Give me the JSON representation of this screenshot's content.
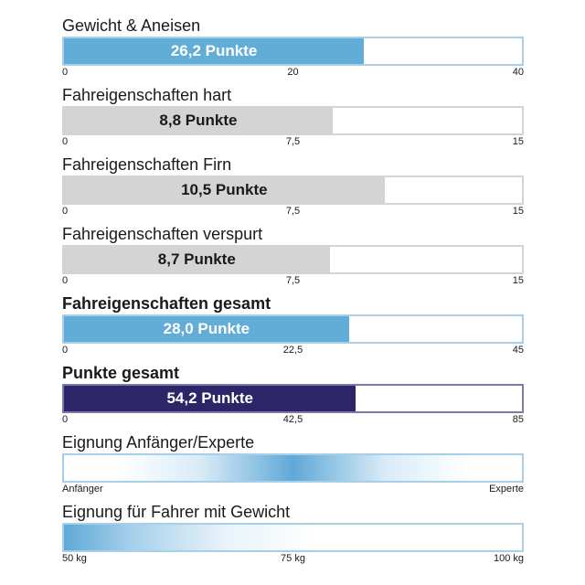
{
  "chart_data": [
    {
      "type": "bar",
      "style": "blue",
      "title": "Gewicht & Aneisen",
      "bold_title": false,
      "value": 26.2,
      "value_label": "26,2 Punkte",
      "xlim": [
        0,
        40
      ],
      "ticks": [
        "0",
        "20",
        "40"
      ]
    },
    {
      "type": "bar",
      "style": "gray",
      "title": "Fahreigenschaften hart",
      "bold_title": false,
      "value": 8.8,
      "value_label": "8,8 Punkte",
      "xlim": [
        0,
        15
      ],
      "ticks": [
        "0",
        "7,5",
        "15"
      ]
    },
    {
      "type": "bar",
      "style": "gray",
      "title": "Fahreigenschaften Firn",
      "bold_title": false,
      "value": 10.5,
      "value_label": "10,5 Punkte",
      "xlim": [
        0,
        15
      ],
      "ticks": [
        "0",
        "7,5",
        "15"
      ]
    },
    {
      "type": "bar",
      "style": "gray",
      "title": "Fahreigenschaften verspurt",
      "bold_title": false,
      "value": 8.7,
      "value_label": "8,7 Punkte",
      "xlim": [
        0,
        15
      ],
      "ticks": [
        "0",
        "7,5",
        "15"
      ]
    },
    {
      "type": "bar",
      "style": "blue",
      "title": "Fahreigenschaften gesamt",
      "bold_title": true,
      "value": 28.0,
      "value_label": "28,0 Punkte",
      "xlim": [
        0,
        45
      ],
      "ticks": [
        "0",
        "22,5",
        "45"
      ]
    },
    {
      "type": "bar",
      "style": "navy",
      "title": "Punkte gesamt",
      "bold_title": true,
      "value": 54.2,
      "value_label": "54,2 Punkte",
      "xlim": [
        0,
        85
      ],
      "ticks": [
        "0",
        "42,5",
        "85"
      ]
    },
    {
      "type": "heatmap",
      "style": "gradient-center",
      "title": "Eignung Anfänger/Experte",
      "bold_title": false,
      "peak": 0.5,
      "ticks": [
        "Anfänger",
        "",
        "Experte"
      ]
    },
    {
      "type": "heatmap",
      "style": "gradient-left",
      "title": "Eignung für Fahrer mit Gewicht",
      "bold_title": false,
      "peak": 0.0,
      "ticks": [
        "50 kg",
        "75 kg",
        "100 kg"
      ]
    }
  ],
  "colors": {
    "blue": "#62add8",
    "gray": "#d4d4d4",
    "navy": "#2c2567",
    "blue_border": "#a9cfe8"
  }
}
